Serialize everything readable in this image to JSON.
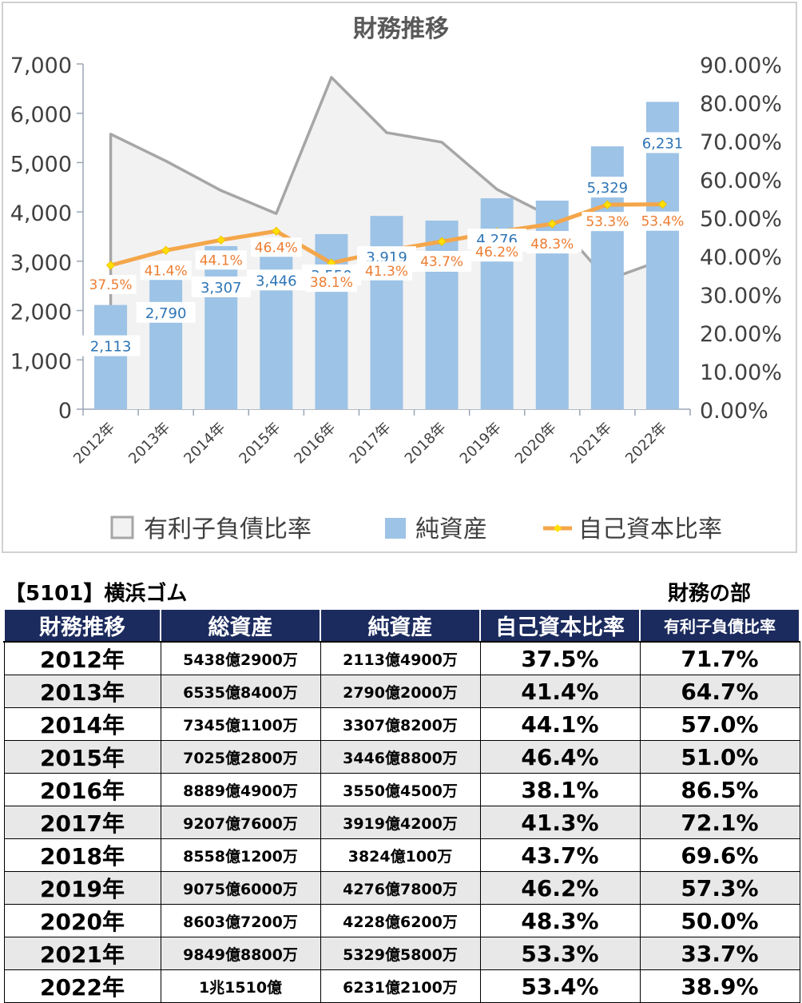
{
  "chart_data": {
    "type": "bar+line+area",
    "title": "財務推移",
    "categories": [
      "2012年",
      "2013年",
      "2014年",
      "2015年",
      "2016年",
      "2017年",
      "2018年",
      "2019年",
      "2020年",
      "2021年",
      "2022年"
    ],
    "left_axis": {
      "min": 0,
      "max": 7000,
      "ticks": [
        "0",
        "1,000",
        "2,000",
        "3,000",
        "4,000",
        "5,000",
        "6,000",
        "7,000"
      ]
    },
    "right_axis": {
      "min": 0,
      "max": 90,
      "ticks": [
        "0.00%",
        "10.00%",
        "20.00%",
        "30.00%",
        "40.00%",
        "50.00%",
        "60.00%",
        "70.00%",
        "80.00%",
        "90.00%"
      ]
    },
    "series": [
      {
        "name": "有利子負債比率",
        "type": "area",
        "axis": "right",
        "color": "#a6a6a6",
        "values": [
          71.7,
          64.7,
          57.0,
          51.0,
          86.5,
          72.1,
          69.6,
          57.3,
          50.0,
          33.7,
          38.9
        ]
      },
      {
        "name": "純資産",
        "type": "bar",
        "axis": "left",
        "color": "#9dc3e6",
        "values": [
          2113,
          2790,
          3307,
          3446,
          3550,
          3919,
          3824,
          4276,
          4228,
          5329,
          6231
        ],
        "labels": [
          "2,113",
          "2,790",
          "3,307",
          "3,446",
          "3,550",
          "3,919",
          "3,824",
          "4,276",
          "4,228",
          "5,329",
          "6,231"
        ]
      },
      {
        "name": "自己資本比率",
        "type": "line",
        "axis": "right",
        "color": "#f4a64a",
        "values": [
          37.5,
          41.4,
          44.1,
          46.4,
          38.1,
          41.3,
          43.7,
          46.2,
          48.3,
          53.3,
          53.4
        ],
        "labels": [
          "37.5%",
          "41.4%",
          "44.1%",
          "46.4%",
          "38.1%",
          "41.3%",
          "43.7%",
          "46.2%",
          "48.3%",
          "53.3%",
          "53.4%"
        ]
      }
    ],
    "legend_position": "bottom"
  },
  "company": "【5101】横浜ゴム",
  "section": "財務の部",
  "table": {
    "headers": [
      "財務推移",
      "総資産",
      "純資産",
      "自己資本比率",
      "有利子負債比率"
    ],
    "rows": [
      [
        "2012年",
        "5438億2900万",
        "2113億4900万",
        "37.5%",
        "71.7%"
      ],
      [
        "2013年",
        "6535億8400万",
        "2790億2000万",
        "41.4%",
        "64.7%"
      ],
      [
        "2014年",
        "7345億1100万",
        "3307億8200万",
        "44.1%",
        "57.0%"
      ],
      [
        "2015年",
        "7025億2800万",
        "3446億8800万",
        "46.4%",
        "51.0%"
      ],
      [
        "2016年",
        "8889億4900万",
        "3550億4500万",
        "38.1%",
        "86.5%"
      ],
      [
        "2017年",
        "9207億7600万",
        "3919億4200万",
        "41.3%",
        "72.1%"
      ],
      [
        "2018年",
        "8558億1200万",
        "3824億100万",
        "43.7%",
        "69.6%"
      ],
      [
        "2019年",
        "9075億6000万",
        "4276億7800万",
        "46.2%",
        "57.3%"
      ],
      [
        "2020年",
        "8603億7200万",
        "4228億6200万",
        "48.3%",
        "50.0%"
      ],
      [
        "2021年",
        "9849億8800万",
        "5329億5800万",
        "53.3%",
        "33.7%"
      ],
      [
        "2022年",
        "1兆1510億",
        "6231億2100万",
        "53.4%",
        "38.9%"
      ]
    ]
  }
}
